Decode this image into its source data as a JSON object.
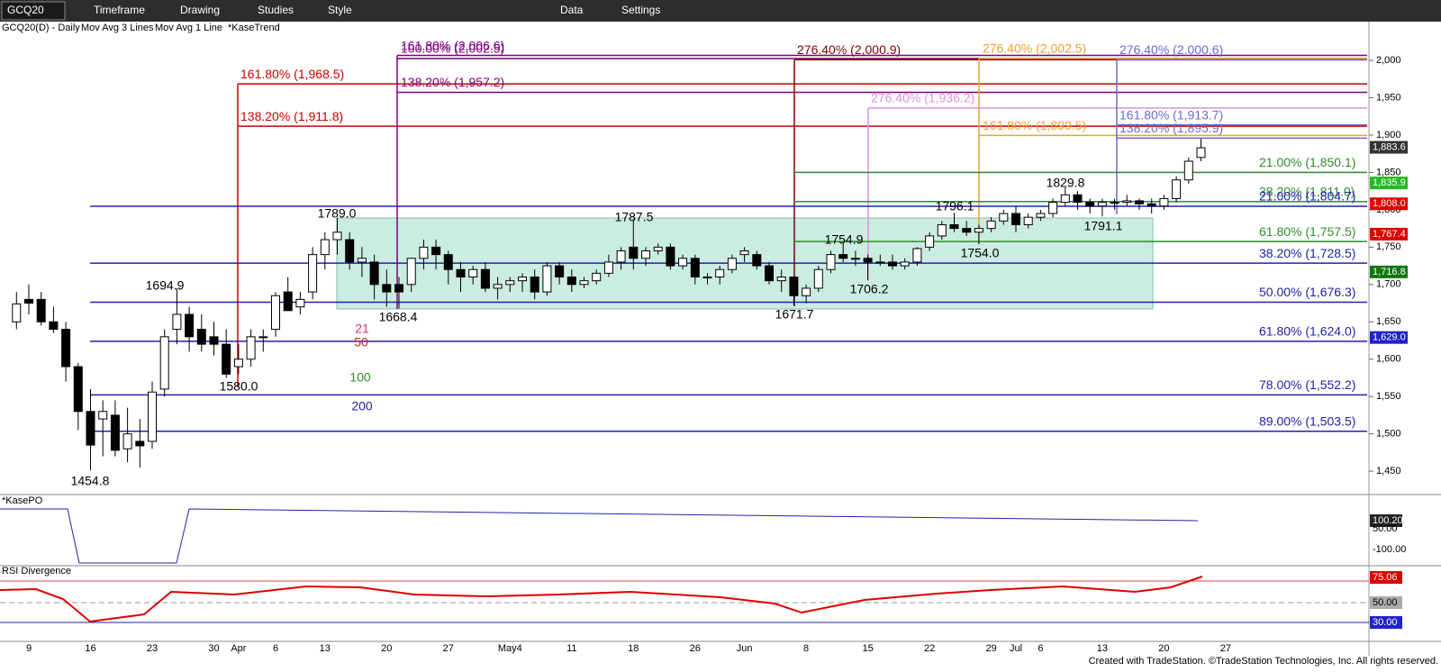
{
  "toolbar": {
    "symbol": "GCQ20",
    "items": [
      "Timeframe",
      "Drawing",
      "Studies",
      "Style",
      "Data",
      "Settings"
    ]
  },
  "chart_data": {
    "type": "candlestick",
    "title": "GCQ20(D) - Daily",
    "studies": [
      "Mov Avg 3 Lines",
      "Mov Avg 1 Line",
      "*KaseTrend"
    ],
    "up_color": "#ffffff",
    "down_color": "#000000",
    "categories": [
      null,
      "9",
      null,
      null,
      null,
      null,
      "16",
      null,
      null,
      null,
      null,
      "23",
      null,
      null,
      null,
      null,
      "30",
      null,
      "Apr",
      null,
      null,
      "6",
      null,
      null,
      null,
      "13",
      null,
      null,
      null,
      null,
      "20",
      null,
      null,
      null,
      null,
      "27",
      null,
      null,
      null,
      null,
      "May4",
      null,
      null,
      null,
      null,
      "11",
      null,
      null,
      null,
      null,
      "18",
      null,
      null,
      null,
      null,
      "26",
      null,
      null,
      null,
      "Jun",
      null,
      null,
      null,
      null,
      "8",
      null,
      null,
      null,
      null,
      "15",
      null,
      null,
      null,
      null,
      "22",
      null,
      null,
      null,
      null,
      "29",
      null,
      "Jul",
      null,
      "6",
      null,
      null,
      null,
      null,
      "13",
      null,
      null,
      null,
      null,
      "20",
      null,
      null,
      null,
      null,
      "27"
    ],
    "open": [
      1650,
      1680,
      1680,
      1650,
      1640,
      1590,
      1530,
      1520,
      1525,
      1480,
      1490,
      1490,
      1560,
      1640,
      1660,
      1640,
      1630,
      1620,
      1590,
      1600,
      1630,
      1640,
      1690,
      1670,
      1690,
      1740,
      1760,
      1760,
      1730,
      1730,
      1700,
      1700,
      1700,
      1735,
      1750,
      1740,
      1720,
      1710,
      1720,
      1695,
      1700,
      1705,
      1710,
      1690,
      1725,
      1710,
      1700,
      1705,
      1715,
      1730,
      1750,
      1735,
      1745,
      1750,
      1725,
      1735,
      1710,
      1710,
      1720,
      1740,
      1740,
      1725,
      1705,
      1710,
      1685,
      1695,
      1720,
      1740,
      1735,
      1735,
      1730,
      1730,
      1725,
      1730,
      1750,
      1765,
      1780,
      1775,
      1770,
      1775,
      1785,
      1795,
      1780,
      1790,
      1795,
      1810,
      1820,
      1810,
      1805,
      1810,
      1810,
      1812,
      1808,
      1805,
      1815,
      1840,
      1870,
      null,
      null
    ],
    "high": [
      1690,
      1700,
      1690,
      1670,
      1650,
      1595,
      1560,
      1545,
      1545,
      1535,
      1520,
      1570,
      1640,
      1695,
      1670,
      1660,
      1650,
      1640,
      1620,
      1640,
      1640,
      1690,
      1710,
      1690,
      1750,
      1770,
      1789,
      1770,
      1750,
      1740,
      1720,
      1710,
      1735,
      1760,
      1760,
      1745,
      1730,
      1725,
      1730,
      1710,
      1710,
      1715,
      1720,
      1730,
      1730,
      1720,
      1710,
      1720,
      1740,
      1750,
      1787.5,
      1750,
      1755,
      1755,
      1740,
      1740,
      1715,
      1725,
      1740,
      1750,
      1745,
      1730,
      1720,
      1710,
      1700,
      1725,
      1745,
      1755,
      1745,
      1740,
      1740,
      1740,
      1735,
      1750,
      1770,
      1785,
      1796,
      1785,
      1780,
      1790,
      1800,
      1805,
      1795,
      1800,
      1815,
      1830,
      1825,
      1815,
      1815,
      1815,
      1820,
      1815,
      1815,
      1820,
      1845,
      1870,
      1895,
      null,
      null
    ],
    "low": [
      1640,
      1660,
      1645,
      1635,
      1570,
      1505,
      1451,
      1470,
      1470,
      1462,
      1455,
      1480,
      1550,
      1620,
      1610,
      1610,
      1605,
      1575,
      1580,
      1590,
      1610,
      1630,
      1670,
      1660,
      1680,
      1720,
      1740,
      1720,
      1710,
      1680,
      1670,
      1668,
      1690,
      1720,
      1720,
      1700,
      1690,
      1700,
      1690,
      1680,
      1690,
      1690,
      1680,
      1685,
      1700,
      1690,
      1695,
      1700,
      1710,
      1720,
      1720,
      1725,
      1740,
      1720,
      1720,
      1700,
      1700,
      1700,
      1715,
      1730,
      1720,
      1700,
      1690,
      1672,
      1675,
      1690,
      1715,
      1730,
      1725,
      1706,
      1725,
      1720,
      1720,
      1725,
      1745,
      1760,
      1770,
      1765,
      1754,
      1770,
      1780,
      1770,
      1775,
      1785,
      1790,
      1805,
      1800,
      1795,
      1791,
      1800,
      1805,
      1800,
      1795,
      1800,
      1810,
      1835,
      1865,
      null,
      null
    ],
    "close": [
      1674,
      1675,
      1650,
      1640,
      1590,
      1530,
      1485,
      1530,
      1478,
      1500,
      1484,
      1556,
      1630,
      1660,
      1630,
      1620,
      1620,
      1580,
      1600,
      1630,
      1630,
      1685,
      1665,
      1680,
      1740,
      1760,
      1770,
      1730,
      1735,
      1700,
      1690,
      1690,
      1735,
      1750,
      1740,
      1720,
      1710,
      1720,
      1695,
      1700,
      1705,
      1710,
      1690,
      1725,
      1710,
      1700,
      1705,
      1715,
      1730,
      1745,
      1735,
      1745,
      1750,
      1725,
      1735,
      1710,
      1710,
      1720,
      1735,
      1745,
      1725,
      1705,
      1710,
      1685,
      1695,
      1720,
      1740,
      1735,
      1735,
      1730,
      1730,
      1725,
      1730,
      1748,
      1765,
      1780,
      1775,
      1770,
      1775,
      1785,
      1795,
      1780,
      1790,
      1795,
      1810,
      1820,
      1810,
      1805,
      1810,
      1810,
      1812,
      1808,
      1805,
      1815,
      1840,
      1865,
      1883,
      null,
      null
    ],
    "ylim": [
      1420,
      2035
    ],
    "yticks": [
      {
        "value": 1450,
        "label": "1,450"
      },
      {
        "value": 1500,
        "label": "1,500"
      },
      {
        "value": 1550,
        "label": "1,550"
      },
      {
        "value": 1600,
        "label": "1,600"
      },
      {
        "value": 1650,
        "label": "1,650"
      },
      {
        "value": 1700,
        "label": "1,700"
      },
      {
        "value": 1750,
        "label": "1,750"
      },
      {
        "value": 1800,
        "label": "1,800"
      },
      {
        "value": 1850,
        "label": "1,850"
      },
      {
        "value": 1900,
        "label": "1,900"
      },
      {
        "value": 1950,
        "label": "1,950"
      },
      {
        "value": 2000,
        "label": "2,000"
      }
    ],
    "fib_groups": [
      {
        "color": "#cc0000",
        "levels": [
          {
            "value": 1968.5,
            "label": "161.80% (1,968.5)"
          },
          {
            "value": 1911.8,
            "label": "138.20% (1,911.8)"
          }
        ]
      },
      {
        "color": "#800080",
        "levels": [
          {
            "value": 2006.6,
            "label": "161.80% (2,006.6)"
          },
          {
            "value": 2002.5,
            "label": "100.00% (2,002.5)"
          },
          {
            "value": 1957.2,
            "label": "138.20% (1,957.2)"
          }
        ]
      },
      {
        "color": "#800000",
        "levels": [
          {
            "value": 2000.9,
            "label": "276.40% (2,000.9)"
          }
        ]
      },
      {
        "color": "#f0a030",
        "levels": [
          {
            "value": 2002.5,
            "label": "276.40% (2,002.5)"
          },
          {
            "value": 1899.5,
            "label": "161.80% (1,899.5)"
          }
        ]
      },
      {
        "color": "#e090e0",
        "levels": [
          {
            "value": 1936.2,
            "label": "276.40% (1,936.2)"
          }
        ]
      },
      {
        "color": "#6a6acd",
        "levels": [
          {
            "value": 2000.6,
            "label": "276.40% (2,000.6)"
          },
          {
            "value": 1913.7,
            "label": "161.80% (1,913.7)"
          },
          {
            "value": 1895.9,
            "label": "138.20% (1,895.9)"
          }
        ]
      },
      {
        "color": "#2e8b2e",
        "levels": [
          {
            "value": 1850.1,
            "label": "21.00% (1,850.1)"
          },
          {
            "value": 1811.0,
            "label": "38.20% (1,811.0)"
          },
          {
            "value": 1757.5,
            "label": "61.80% (1,757.5)"
          }
        ]
      },
      {
        "color": "#2222aa",
        "levels": [
          {
            "value": 1804.7,
            "label": "21.00% (1,804.7)"
          },
          {
            "value": 1728.5,
            "label": "38.20% (1,728.5)"
          },
          {
            "value": 1676.3,
            "label": "50.00% (1,676.3)"
          },
          {
            "value": 1624.0,
            "label": "61.80% (1,624.0)"
          },
          {
            "value": 1552.2,
            "label": "78.00% (1,552.2)"
          },
          {
            "value": 1503.5,
            "label": "89.00% (1,503.5)"
          }
        ]
      }
    ],
    "price_tags": [
      {
        "value": 1883.6,
        "label": "1,883.6",
        "color": "#333333"
      },
      {
        "value": 1835.9,
        "label": "1,835.9",
        "color": "#22bb22"
      },
      {
        "value": 1808.0,
        "label": "1,808.0",
        "color": "#dd0000"
      },
      {
        "value": 1767.4,
        "label": "1,767.4",
        "color": "#dd0000"
      },
      {
        "value": 1716.8,
        "label": "1,716.8",
        "color": "#117711"
      },
      {
        "value": 1629.0,
        "label": "1,629.0",
        "color": "#2222cc"
      }
    ],
    "swing_labels": [
      "1789.0",
      "1787.5",
      "1694.9",
      "1580.0",
      "1454.8",
      "1668.4",
      "1671.7",
      "1754.9",
      "1706.2",
      "1796.1",
      "1754.0",
      "1829.8",
      "1791.1"
    ],
    "ma_labels": [
      "21",
      "50",
      "100",
      "200"
    ],
    "panels": [
      {
        "title": "*KasePO",
        "labels": [
          "100.20",
          "50.00",
          "-100.00"
        ]
      },
      {
        "title": "RSI Divergence",
        "labels": [
          "75.06",
          "50.00",
          "30.00"
        ]
      }
    ]
  },
  "footer": "Created with TradeStation. ©TradeStation Technologies, Inc. All rights reserved."
}
